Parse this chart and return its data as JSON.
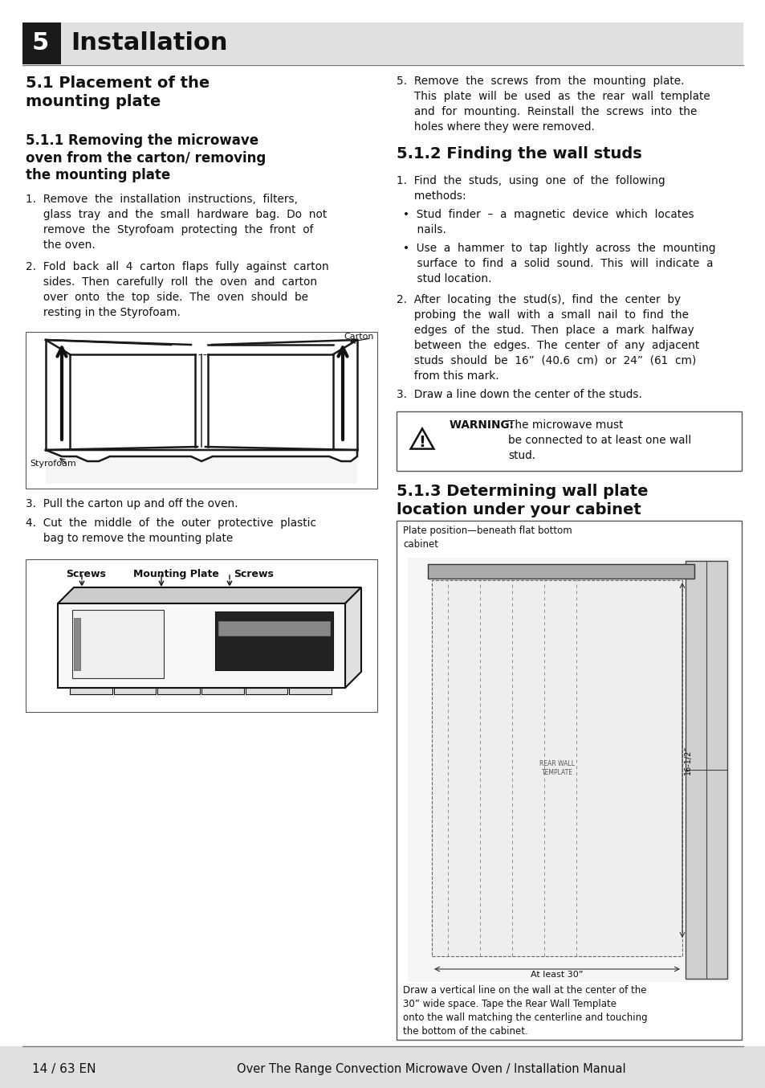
{
  "page_bg": "#ffffff",
  "header_bg": "#e0e0e0",
  "header_num_bg": "#1a1a1a",
  "header_num_text": "5",
  "header_title": "Installation",
  "footer_bg": "#e0e0e0",
  "footer_left": "14 / 63 EN",
  "footer_right": "Over The Range Convection Microwave Oven / Installation Manual",
  "sec51_title": "5.1 Placement of the\nmounting plate",
  "sec511_title": "5.1.1 Removing the microwave\noven from the carton/ removing\nthe mounting plate",
  "item1": "1.  Remove  the  installation  instructions,  filters,\n     glass  tray  and  the  small  hardware  bag.  Do  not\n     remove  the  Styrofoam  protecting  the  front  of\n     the oven.",
  "item2": "2.  Fold  back  all  4  carton  flaps  fully  against  carton\n     sides.  Then  carefully  roll  the  oven  and  carton\n     over  onto  the  top  side.  The  oven  should  be\n     resting in the Styrofoam.",
  "item3": "3.  Pull the carton up and off the oven.",
  "item4": "4.  Cut  the  middle  of  the  outer  protective  plastic\n     bag to remove the mounting plate",
  "item5": "5.  Remove  the  screws  from  the  mounting  plate.\n     This  plate  will  be  used  as  the  rear  wall  template\n     and  for  mounting.  Reinstall  the  screws  into  the\n     holes where they were removed.",
  "sec512_title": "5.1.2 Finding the wall studs",
  "r1": "1.  Find  the  studs,  using  one  of  the  following\n     methods:",
  "b1": "•  Stud  finder  –  a  magnetic  device  which  locates\n    nails.",
  "b2": "•  Use  a  hammer  to  tap  lightly  across  the  mounting\n    surface  to  find  a  solid  sound.  This  will  indicate  a\n    stud location.",
  "r2": "2.  After  locating  the  stud(s),  find  the  center  by\n     probing  the  wall  with  a  small  nail  to  find  the\n     edges  of  the  stud.  Then  place  a  mark  halfway\n     between  the  edges.  The  center  of  any  adjacent\n     studs  should  be  16”  (40.6  cm)  or  24”  (61  cm)\n     from this mark.",
  "r3": "3.  Draw a line down the center of the studs.",
  "warning_bold": "WARNING: ",
  "warning_rest": " The microwave must\nbe connected to at least one wall\nstud.",
  "sec513_title": "5.1.3 Determining wall plate\nlocation under your cabinet",
  "plate_caption": "Plate position—beneath flat bottom\ncabinet",
  "at_least_text": "At least 30”",
  "measure_16": "16-1/2”",
  "draw_line_text": "Draw a vertical line on the wall at the center of the\n30” wide space. Tape the Rear Wall Template\nonto the wall matching the centerline and touching\nthe bottom of the cabinet.",
  "carton_label": "Carton",
  "styrofoam_label": "Styrofoam",
  "screws_label1": "Screws",
  "screws_label2": "Screws",
  "mounting_plate_label": "Mounting Plate"
}
